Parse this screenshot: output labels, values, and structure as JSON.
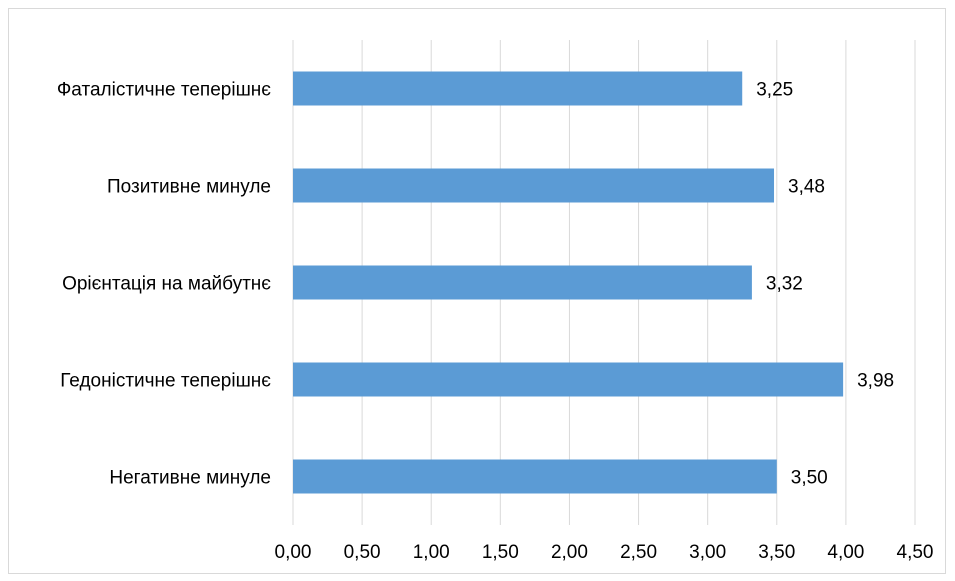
{
  "chart_data": {
    "type": "bar",
    "orientation": "horizontal",
    "categories": [
      "Фаталістичне теперішнє",
      "Позитивне минуле",
      "Орієнтація на майбутнє",
      "Гедоністичне теперішнє",
      "Негативне минуле"
    ],
    "values": [
      3.25,
      3.48,
      3.32,
      3.98,
      3.5
    ],
    "data_labels": [
      "3,25",
      "3,48",
      "3,32",
      "3,98",
      "3,50"
    ],
    "x_ticks": [
      "0,00",
      "0,50",
      "1,00",
      "1,50",
      "2,00",
      "2,50",
      "3,00",
      "3,50",
      "4,00",
      "4,50"
    ],
    "xlim": [
      0,
      4.5
    ],
    "grid": true,
    "legend": "none",
    "bar_color": "#5b9bd5",
    "grid_color": "#d9d9d9",
    "title": "",
    "xlabel": "",
    "ylabel": ""
  }
}
